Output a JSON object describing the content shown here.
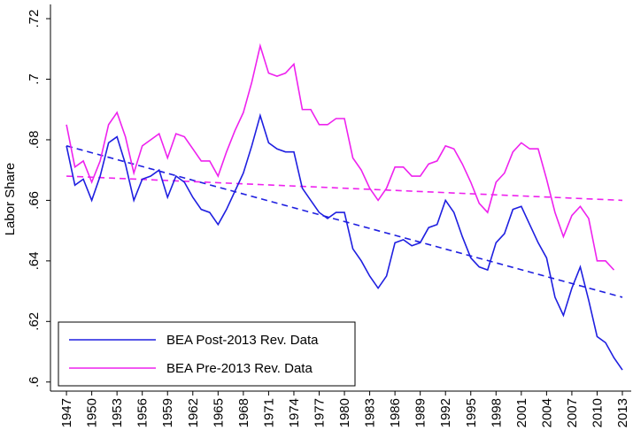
{
  "chart_data": {
    "type": "line",
    "y_label": "Labor Share",
    "x": [
      1947,
      1948,
      1949,
      1950,
      1951,
      1952,
      1953,
      1954,
      1955,
      1956,
      1957,
      1958,
      1959,
      1960,
      1961,
      1962,
      1963,
      1964,
      1965,
      1966,
      1967,
      1968,
      1969,
      1970,
      1971,
      1972,
      1973,
      1974,
      1975,
      1976,
      1977,
      1978,
      1979,
      1980,
      1981,
      1982,
      1983,
      1984,
      1985,
      1986,
      1987,
      1988,
      1989,
      1990,
      1991,
      1992,
      1993,
      1994,
      1995,
      1996,
      1997,
      1998,
      1999,
      2000,
      2001,
      2002,
      2003,
      2004,
      2005,
      2006,
      2007,
      2008,
      2009,
      2010,
      2011,
      2012,
      2013
    ],
    "series": [
      {
        "name": "BEA Post-2013 Rev. Data",
        "color": "#1f1fe0",
        "values": [
          0.678,
          0.665,
          0.667,
          0.66,
          0.668,
          0.679,
          0.681,
          0.672,
          0.66,
          0.667,
          0.668,
          0.67,
          0.661,
          0.668,
          0.666,
          0.661,
          0.657,
          0.656,
          0.652,
          0.657,
          0.663,
          0.669,
          0.678,
          0.688,
          0.679,
          0.677,
          0.676,
          0.676,
          0.664,
          0.66,
          0.656,
          0.654,
          0.656,
          0.656,
          0.644,
          0.64,
          0.635,
          0.631,
          0.635,
          0.646,
          0.647,
          0.645,
          0.646,
          0.651,
          0.652,
          0.66,
          0.656,
          0.648,
          0.641,
          0.638,
          0.637,
          0.646,
          0.649,
          0.657,
          0.658,
          0.652,
          0.646,
          0.641,
          0.628,
          0.622,
          0.631,
          0.638,
          0.627,
          0.615,
          0.613,
          0.608,
          0.604
        ]
      },
      {
        "name": "BEA Pre-2013 Rev. Data",
        "color": "#ee22ee",
        "values": [
          0.685,
          0.671,
          0.673,
          0.666,
          0.673,
          0.685,
          0.689,
          0.681,
          0.669,
          0.678,
          0.68,
          0.682,
          0.674,
          0.682,
          0.681,
          0.677,
          0.673,
          0.673,
          0.668,
          0.676,
          0.683,
          0.689,
          0.699,
          0.711,
          0.702,
          0.701,
          0.702,
          0.705,
          0.69,
          0.69,
          0.685,
          0.685,
          0.687,
          0.687,
          0.674,
          0.67,
          0.664,
          0.66,
          0.664,
          0.671,
          0.671,
          0.668,
          0.668,
          0.672,
          0.673,
          0.678,
          0.677,
          0.672,
          0.666,
          0.659,
          0.656,
          0.666,
          0.669,
          0.676,
          0.679,
          0.677,
          0.677,
          0.667,
          0.656,
          0.648,
          0.655,
          0.658,
          0.654,
          0.64,
          0.64,
          0.637,
          null
        ]
      }
    ],
    "trend_lines": [
      {
        "color": "#1f1fe0",
        "dashed": true,
        "x": [
          1947,
          2013
        ],
        "values": [
          0.678,
          0.628
        ]
      },
      {
        "color": "#ee22ee",
        "dashed": true,
        "x": [
          1947,
          2013
        ],
        "values": [
          0.668,
          0.66
        ]
      }
    ],
    "xlim": [
      1945.1,
      2014.05
    ],
    "xticks": [
      1947,
      1950,
      1953,
      1956,
      1959,
      1962,
      1965,
      1968,
      1971,
      1974,
      1977,
      1980,
      1983,
      1986,
      1989,
      1992,
      1995,
      1998,
      2001,
      2004,
      2007,
      2010,
      2013
    ],
    "ylim": [
      0.597,
      0.7247
    ],
    "yticks": [
      {
        "value": 0.6,
        "label": ".6"
      },
      {
        "value": 0.62,
        "label": ".62"
      },
      {
        "value": 0.64,
        "label": ".64"
      },
      {
        "value": 0.66,
        "label": ".66"
      },
      {
        "value": 0.68,
        "label": ".68"
      },
      {
        "value": 0.7,
        "label": ".7"
      },
      {
        "value": 0.72,
        "label": ".72"
      }
    ],
    "grid": false,
    "legend": "lower left"
  }
}
